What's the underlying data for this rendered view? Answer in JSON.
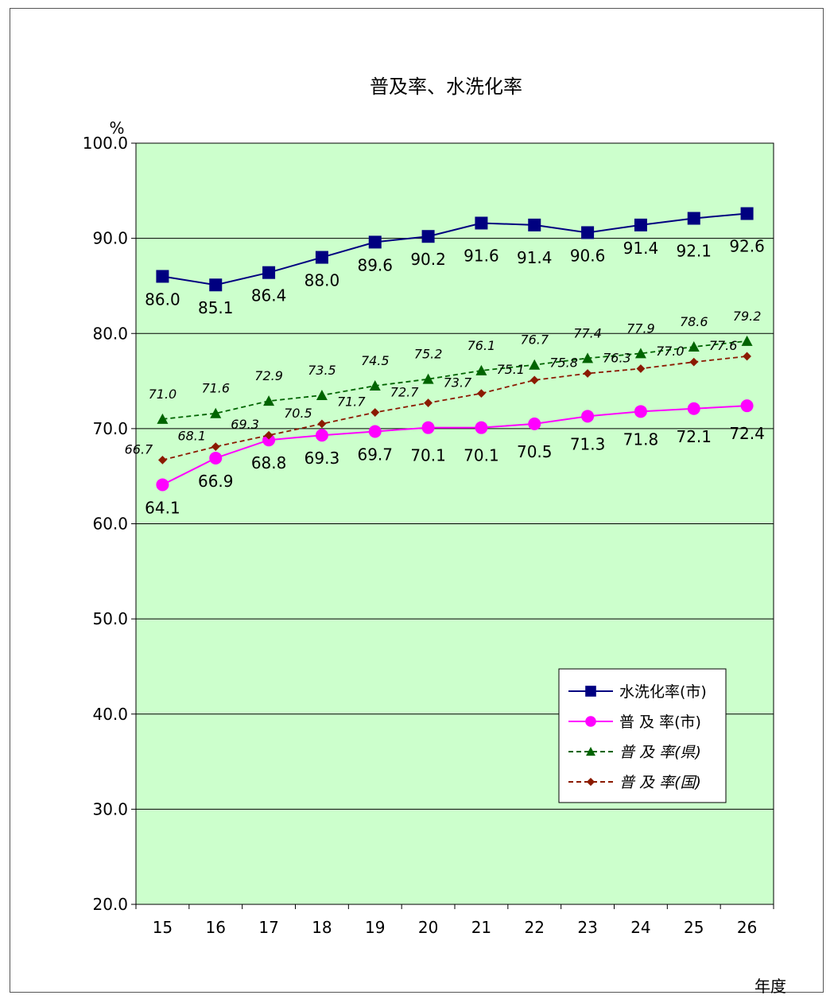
{
  "chart_data": {
    "type": "line",
    "title": "普及率、水洗化率",
    "ylabel": "%",
    "xlabel": "年度",
    "ylim": [
      20,
      100
    ],
    "yticks": [
      "20.0",
      "30.0",
      "40.0",
      "50.0",
      "60.0",
      "70.0",
      "80.0",
      "90.0",
      "100.0"
    ],
    "categories": [
      "15",
      "16",
      "17",
      "18",
      "19",
      "20",
      "21",
      "22",
      "23",
      "24",
      "25",
      "26"
    ],
    "grid": true,
    "legend_position": "bottom-right",
    "plot_background": "#ccffcc",
    "series": [
      {
        "name": "水洗化率(市)",
        "color": "#000080",
        "marker": "square",
        "dashed": false,
        "values": [
          86.0,
          85.1,
          86.4,
          88.0,
          89.6,
          90.2,
          91.6,
          91.4,
          90.6,
          91.4,
          92.1,
          92.6
        ],
        "labels": [
          "86.0",
          "85.1",
          "86.4",
          "88.0",
          "89.6",
          "90.2",
          "91.6",
          "91.4",
          "90.6",
          "91.4",
          "92.1",
          "92.6"
        ]
      },
      {
        "name": "普 及 率(市)",
        "color": "#ff00ff",
        "marker": "circle",
        "dashed": false,
        "values": [
          64.1,
          66.9,
          68.8,
          69.3,
          69.7,
          70.1,
          70.1,
          70.5,
          71.3,
          71.8,
          72.1,
          72.4
        ],
        "labels": [
          "64.1",
          "66.9",
          "68.8",
          "69.3",
          "69.7",
          "70.1",
          "70.1",
          "70.5",
          "71.3",
          "71.8",
          "72.1",
          "72.4"
        ]
      },
      {
        "name": "普 及 率(県)",
        "color": "#006400",
        "marker": "triangle",
        "dashed": true,
        "values": [
          71.0,
          71.6,
          72.9,
          73.5,
          74.5,
          75.2,
          76.1,
          76.7,
          77.4,
          77.9,
          78.6,
          79.2
        ],
        "labels": [
          "71.0",
          "71.6",
          "72.9",
          "73.5",
          "74.5",
          "75.2",
          "76.1",
          "76.7",
          "77.4",
          "77.9",
          "78.6",
          "79.2"
        ]
      },
      {
        "name": "普 及 率(国)",
        "color": "#8b1a00",
        "marker": "diamond",
        "dashed": true,
        "values": [
          66.7,
          68.1,
          69.3,
          70.5,
          71.7,
          72.7,
          73.7,
          75.1,
          75.8,
          76.3,
          77.0,
          77.6
        ],
        "labels": [
          "66.7",
          "68.1",
          "69.3",
          "70.5",
          "71.7",
          "72.7",
          "73.7",
          "75.1",
          "75.8",
          "76.3",
          "77.0",
          "77.6"
        ]
      }
    ]
  }
}
